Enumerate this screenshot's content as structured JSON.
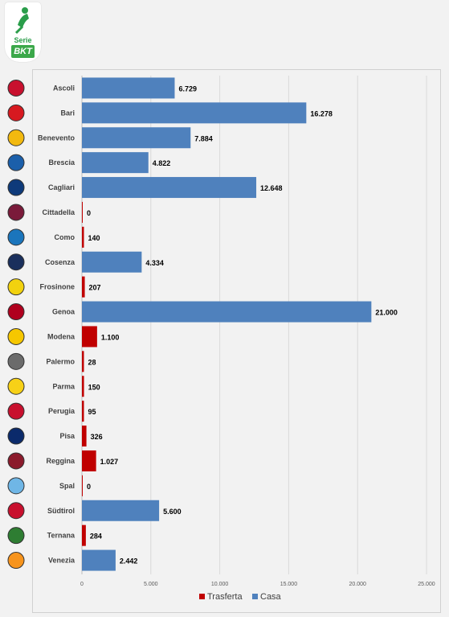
{
  "logo": {
    "line1": "Serie",
    "line2": "BKT"
  },
  "chart_data": {
    "type": "bar",
    "orientation": "horizontal",
    "categories": [
      "Ascoli",
      "Bari",
      "Benevento",
      "Brescia",
      "Cagliari",
      "Cittadella",
      "Como",
      "Cosenza",
      "Frosinone",
      "Genoa",
      "Modena",
      "Palermo",
      "Parma",
      "Perugia",
      "Pisa",
      "Reggina",
      "Spal",
      "Südtirol",
      "Ternana",
      "Venezia"
    ],
    "series": [
      {
        "name": "Trasferta",
        "color": "#c00000",
        "values": [
          null,
          null,
          null,
          null,
          null,
          0,
          140,
          null,
          207,
          null,
          1100,
          28,
          150,
          95,
          326,
          1027,
          0,
          null,
          284,
          null
        ]
      },
      {
        "name": "Casa",
        "color": "#4f81bd",
        "values": [
          6729,
          16278,
          7884,
          4822,
          12648,
          null,
          null,
          4334,
          null,
          21000,
          null,
          null,
          null,
          null,
          null,
          null,
          null,
          5600,
          null,
          2442
        ]
      }
    ],
    "value_labels": [
      "6.729",
      "16.278",
      "7.884",
      "4.822",
      "12.648",
      "0",
      "140",
      "4.334",
      "207",
      "21.000",
      "1.100",
      "28",
      "150",
      "95",
      "326",
      "1.027",
      "0",
      "5.600",
      "284",
      "2.442"
    ],
    "xlim": [
      0,
      25000
    ],
    "xticks": [
      0,
      5000,
      10000,
      15000,
      20000,
      25000
    ],
    "xtick_labels": [
      "0",
      "5.000",
      "10.000",
      "15.000",
      "20.000",
      "25.000"
    ],
    "grid": true,
    "legend_position": "bottom"
  }
}
